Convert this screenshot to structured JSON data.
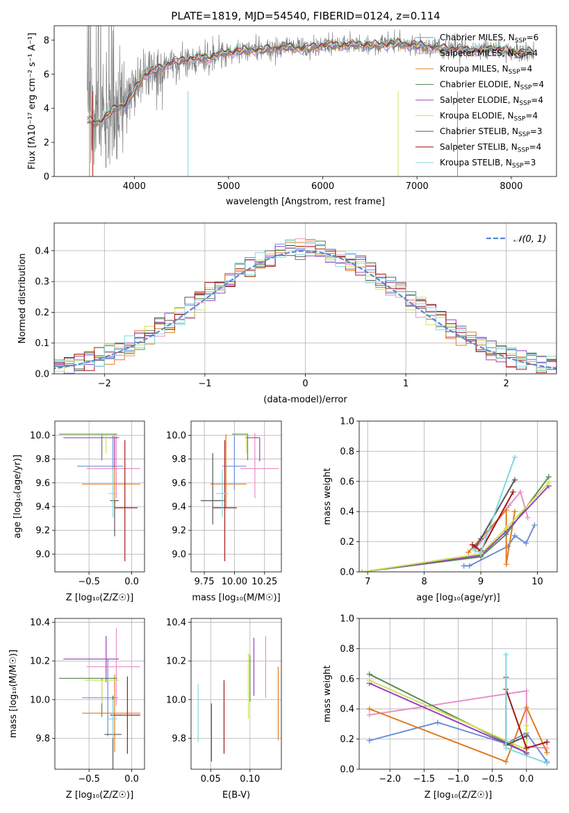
{
  "colors": {
    "Chabrier MILES": "#6a8fd8",
    "Salpeter MILES": "#e990c7",
    "Kroupa MILES": "#e07b20",
    "Chabrier ELODIE": "#5a8a5a",
    "Salpeter ELODIE": "#9b3fbf",
    "Kroupa ELODIE": "#cfe05a",
    "Chabrier STELIB": "#555555",
    "Salpeter STELIB": "#a01818",
    "Kroupa STELIB": "#7fd8e0"
  },
  "chart_data": [
    {
      "id": "spectrum",
      "type": "line",
      "title": "PLATE=1819, MJD=54540, FIBERID=0124, z=0.114",
      "xlabel": "wavelength [Angstrom, rest frame]",
      "ylabel": "Flux [fλ10⁻¹⁷ erg cm⁻² s⁻¹ A⁻¹]",
      "xlim": [
        3150,
        8480
      ],
      "ylim": [
        0,
        8.85
      ],
      "xticks": [
        "4000",
        "5000",
        "6000",
        "7000",
        "8000"
      ],
      "yticks": [
        "0",
        "2",
        "4",
        "6",
        "8"
      ],
      "grid": false,
      "legend_position": "upper-right",
      "legend": [
        {
          "label": "Chabrier MILES, N",
          "sub": "SSP",
          "suffix": "=6",
          "series": "Chabrier MILES"
        },
        {
          "label": "Salpeter MILES, N",
          "sub": "SSP",
          "suffix": "=4",
          "series": "Salpeter MILES"
        },
        {
          "label": "Kroupa MILES, N",
          "sub": "SSP",
          "suffix": "=4",
          "series": "Kroupa MILES"
        },
        {
          "label": "Chabrier ELODIE, N",
          "sub": "SSP",
          "suffix": "=4",
          "series": "Chabrier ELODIE"
        },
        {
          "label": "Salpeter ELODIE, N",
          "sub": "SSP",
          "suffix": "=4",
          "series": "Salpeter ELODIE"
        },
        {
          "label": "Kroupa ELODIE, N",
          "sub": "SSP",
          "suffix": "=4",
          "series": "Kroupa ELODIE"
        },
        {
          "label": "Chabrier STELIB, N",
          "sub": "SSP",
          "suffix": "=3",
          "series": "Chabrier STELIB"
        },
        {
          "label": "Salpeter STELIB, N",
          "sub": "SSP",
          "suffix": "=4",
          "series": "Salpeter STELIB"
        },
        {
          "label": "Kroupa STELIB, N",
          "sub": "SSP",
          "suffix": "=3",
          "series": "Kroupa STELIB"
        }
      ],
      "continuum": {
        "x": [
          3500,
          3600,
          3700,
          3800,
          3900,
          4000,
          4100,
          4200,
          4300,
          4400,
          4500,
          4600,
          4800,
          5000,
          5200,
          5400,
          5600,
          5800,
          6000,
          6200,
          6400,
          6600,
          6800,
          7000,
          7200,
          7400,
          7600,
          7800,
          8000,
          8240
        ],
        "y": [
          3.3,
          3.1,
          3.5,
          4.0,
          4.2,
          5.0,
          5.9,
          6.2,
          6.4,
          6.7,
          6.8,
          6.9,
          7.0,
          7.3,
          7.4,
          7.45,
          7.6,
          7.5,
          7.7,
          7.7,
          7.75,
          7.7,
          7.8,
          7.7,
          7.55,
          7.5,
          7.35,
          7.5,
          7.3,
          7.3
        ]
      },
      "data_color": "#808080",
      "noise_note_wavelengths": []
    },
    {
      "id": "residuals",
      "type": "histogram",
      "xlabel": "(data-model)/error",
      "ylabel": "Normed distribution",
      "xlim": [
        -2.5,
        2.5
      ],
      "ylim": [
        0,
        0.49
      ],
      "xticks": [
        "−2",
        "−1",
        "0",
        "1",
        "2"
      ],
      "yticks": [
        "0.0",
        "0.1",
        "0.2",
        "0.3",
        "0.4"
      ],
      "grid": true,
      "legend_position": "upper-right",
      "gaussian_label": "𝒩(0, 1)",
      "gaussian_color": "#5b86d6",
      "bin_width": 0.1
    },
    {
      "id": "age-vs-Z",
      "type": "errorbar",
      "xlabel": "Z [log₁₀(Z/Z☉)]",
      "ylabel": "age  [log₁₀(age/yr)]",
      "xlim": [
        -0.9,
        0.15
      ],
      "ylim": [
        8.85,
        10.12
      ],
      "xticks": [
        "−0.5",
        "0.0"
      ],
      "xtick_values": [
        -0.5,
        0
      ],
      "yticks": [
        "9.0",
        "9.2",
        "9.4",
        "9.6",
        "9.8",
        "10.0"
      ],
      "ytick_values": [
        9.0,
        9.2,
        9.4,
        9.6,
        9.8,
        10.0
      ],
      "grid": true,
      "points": [
        {
          "series": "Chabrier MILES",
          "x": -0.22,
          "xerr": [
            0.42,
            0.12
          ],
          "y": 9.74,
          "yerr": [
            0.2,
            0.26
          ]
        },
        {
          "series": "Salpeter MILES",
          "x": -0.18,
          "xerr": [
            0.35,
            0.28
          ],
          "y": 9.72,
          "yerr": [
            0.25,
            0.28
          ]
        },
        {
          "series": "Kroupa MILES",
          "x": -0.2,
          "xerr": [
            0.38,
            0.3
          ],
          "y": 9.59,
          "yerr": [
            0.2,
            0.42
          ]
        },
        {
          "series": "Chabrier ELODIE",
          "x": -0.35,
          "xerr": [
            0.5,
            0.18
          ],
          "y": 10.01,
          "yerr": [
            0.22,
            0.0
          ]
        },
        {
          "series": "Salpeter ELODIE",
          "x": -0.2,
          "xerr": [
            0.6,
            0.05
          ],
          "y": 9.98,
          "yerr": [
            0.25,
            0.0
          ]
        },
        {
          "series": "Kroupa ELODIE",
          "x": -0.3,
          "xerr": [
            0.5,
            0.15
          ],
          "y": 10.0,
          "yerr": [
            0.15,
            0.0
          ]
        },
        {
          "series": "Chabrier STELIB",
          "x": -0.2,
          "xerr": [
            0.05,
            0.05
          ],
          "y": 9.45,
          "yerr": [
            0.3,
            0.0
          ]
        },
        {
          "series": "Salpeter STELIB",
          "x": -0.08,
          "xerr": [
            0.12,
            0.15
          ],
          "y": 9.39,
          "yerr": [
            0.45,
            0.57
          ]
        },
        {
          "series": "Kroupa STELIB",
          "x": -0.22,
          "xerr": [
            0.05,
            0.05
          ],
          "y": 9.51,
          "yerr": [
            0.2,
            0.2
          ]
        }
      ]
    },
    {
      "id": "age-vs-mass",
      "type": "errorbar",
      "xlabel": "mass [log₁₀(M/M☉)]",
      "xlim": [
        9.64,
        10.39
      ],
      "ylim": [
        8.85,
        10.12
      ],
      "xticks": [
        "9.75",
        "10.00",
        "10.25"
      ],
      "xtick_values": [
        9.75,
        10.0,
        10.25
      ],
      "yticks": [
        "9.0",
        "9.2",
        "9.4",
        "9.6",
        "9.8",
        "10.0"
      ],
      "ytick_values": [
        9.0,
        9.2,
        9.4,
        9.6,
        9.8,
        10.0
      ],
      "grid": true,
      "points": [
        {
          "series": "Chabrier MILES",
          "x": 10.0,
          "xerr": [
            0.1,
            0.1
          ],
          "y": 9.74,
          "yerr": [
            0.2,
            0.26
          ]
        },
        {
          "series": "Salpeter MILES",
          "x": 10.17,
          "xerr": [
            0.12,
            0.2
          ],
          "y": 9.72,
          "yerr": [
            0.25,
            0.3
          ]
        },
        {
          "series": "Kroupa MILES",
          "x": 9.93,
          "xerr": [
            0.13,
            0.17
          ],
          "y": 9.59,
          "yerr": [
            0.2,
            0.42
          ]
        },
        {
          "series": "Chabrier ELODIE",
          "x": 10.11,
          "xerr": [
            0.13,
            0.0
          ],
          "y": 10.01,
          "yerr": [
            0.22,
            0.0
          ]
        },
        {
          "series": "Salpeter ELODIE",
          "x": 10.21,
          "xerr": [
            0.12,
            0.0
          ],
          "y": 9.98,
          "yerr": [
            0.2,
            0.0
          ]
        },
        {
          "series": "Kroupa ELODIE",
          "x": 10.1,
          "xerr": [
            0.1,
            0.0
          ],
          "y": 10.0,
          "yerr": [
            0.15,
            0.0
          ]
        },
        {
          "series": "Chabrier STELIB",
          "x": 9.82,
          "xerr": [
            0.1,
            0.1
          ],
          "y": 9.45,
          "yerr": [
            0.2,
            0.4
          ]
        },
        {
          "series": "Salpeter STELIB",
          "x": 9.92,
          "xerr": [
            0.1,
            0.1
          ],
          "y": 9.39,
          "yerr": [
            0.45,
            0.57
          ]
        },
        {
          "series": "Kroupa STELIB",
          "x": 9.9,
          "xerr": [
            0.05,
            0.05
          ],
          "y": 9.51,
          "yerr": [
            0.2,
            0.2
          ]
        }
      ]
    },
    {
      "id": "massweight-vs-age",
      "type": "line",
      "xlabel": "age  [log₁₀(age/yr)]",
      "ylabel": "mass weight",
      "xlim": [
        6.85,
        10.35
      ],
      "ylim": [
        0,
        1.0
      ],
      "xticks": [
        "7",
        "8",
        "9",
        "10"
      ],
      "xtick_values": [
        7,
        8,
        9,
        10
      ],
      "yticks": [
        "0.0",
        "0.2",
        "0.4",
        "0.6",
        "0.8",
        "1.0"
      ],
      "ytick_values": [
        0,
        0.2,
        0.4,
        0.6,
        0.8,
        1.0
      ],
      "grid": true,
      "series": [
        {
          "name": "Chabrier MILES",
          "x": [
            8.7,
            8.8,
            9.48,
            9.6,
            9.8,
            9.95
          ],
          "y": [
            0.04,
            0.04,
            0.17,
            0.24,
            0.19,
            0.31
          ]
        },
        {
          "name": "Salpeter MILES",
          "x": [
            8.9,
            9.5,
            9.7,
            9.83
          ],
          "y": [
            0.15,
            0.44,
            0.53,
            0.36
          ]
        },
        {
          "name": "Kroupa MILES",
          "x": [
            8.78,
            9.45,
            9.45,
            9.6
          ],
          "y": [
            0.13,
            0.41,
            0.05,
            0.4
          ]
        },
        {
          "name": "Chabrier ELODIE",
          "x": [
            6.9,
            9.0,
            9.45,
            10.2
          ],
          "y": [
            0.0,
            0.1,
            0.25,
            0.63
          ]
        },
        {
          "name": "Salpeter ELODIE",
          "x": [
            6.9,
            9.0,
            9.45,
            10.2
          ],
          "y": [
            0.0,
            0.11,
            0.27,
            0.57
          ]
        },
        {
          "name": "Kroupa ELODIE",
          "x": [
            6.9,
            9.0,
            9.45,
            10.2
          ],
          "y": [
            0.0,
            0.12,
            0.29,
            0.59
          ]
        },
        {
          "name": "Chabrier STELIB",
          "x": [
            8.9,
            9.0,
            9.6
          ],
          "y": [
            0.16,
            0.22,
            0.61
          ]
        },
        {
          "name": "Salpeter STELIB",
          "x": [
            8.85,
            9.0,
            9.57
          ],
          "y": [
            0.18,
            0.14,
            0.53
          ]
        },
        {
          "name": "Kroupa STELIB",
          "x": [
            8.9,
            9.0,
            9.6
          ],
          "y": [
            0.14,
            0.13,
            0.76
          ]
        }
      ]
    },
    {
      "id": "mass-vs-Z",
      "type": "errorbar",
      "xlabel": "Z [log₁₀(Z/Z☉)]",
      "ylabel": "mass [log₁₀(M/M☉)]",
      "xlim": [
        -0.9,
        0.15
      ],
      "ylim": [
        9.64,
        10.42
      ],
      "xticks": [
        "−0.5",
        "0.0"
      ],
      "xtick_values": [
        -0.5,
        0
      ],
      "yticks": [
        "9.8",
        "10.0",
        "10.2",
        "10.4"
      ],
      "ytick_values": [
        9.8,
        10.0,
        10.2,
        10.4
      ],
      "grid": true,
      "points": [
        {
          "series": "Chabrier MILES",
          "x": -0.28,
          "xerr": [
            0.3,
            0.12
          ],
          "y": 10.01,
          "yerr": [
            0.2,
            0.2
          ]
        },
        {
          "series": "Salpeter MILES",
          "x": -0.18,
          "xerr": [
            0.35,
            0.28
          ],
          "y": 10.17,
          "yerr": [
            0.2,
            0.2
          ]
        },
        {
          "series": "Kroupa MILES",
          "x": -0.2,
          "xerr": [
            0.38,
            0.3
          ],
          "y": 9.93,
          "yerr": [
            0.2,
            0.2
          ]
        },
        {
          "series": "Chabrier ELODIE",
          "x": -0.35,
          "xerr": [
            0.5,
            0.18
          ],
          "y": 10.11,
          "yerr": [
            0.2,
            0.0
          ]
        },
        {
          "series": "Salpeter ELODIE",
          "x": -0.3,
          "xerr": [
            0.5,
            0.15
          ],
          "y": 10.21,
          "yerr": [
            0.12,
            0.12
          ]
        },
        {
          "series": "Kroupa ELODIE",
          "x": -0.35,
          "xerr": [
            0.2,
            0.2
          ],
          "y": 10.1,
          "yerr": [
            0.12,
            0.0
          ]
        },
        {
          "series": "Chabrier STELIB",
          "x": -0.22,
          "xerr": [
            0.1,
            0.1
          ],
          "y": 9.82,
          "yerr": [
            0.2,
            0.2
          ]
        },
        {
          "series": "Salpeter STELIB",
          "x": -0.05,
          "xerr": [
            0.2,
            0.15
          ],
          "y": 9.92,
          "yerr": [
            0.2,
            0.2
          ]
        },
        {
          "series": "Kroupa STELIB",
          "x": -0.22,
          "xerr": [
            0.05,
            0.05
          ],
          "y": 9.9,
          "yerr": [
            0.1,
            0.1
          ]
        }
      ]
    },
    {
      "id": "mass-vs-EBV",
      "type": "errorbar",
      "xlabel": "E(B-V)",
      "xlim": [
        0.025,
        0.14
      ],
      "ylim": [
        9.64,
        10.42
      ],
      "xticks": [
        "0.05",
        "0.10"
      ],
      "xtick_values": [
        0.05,
        0.1
      ],
      "yticks": [
        "9.8",
        "10.0",
        "10.2",
        "10.4"
      ],
      "ytick_values": [
        9.8,
        10.0,
        10.2,
        10.4
      ],
      "grid": true,
      "points": [
        {
          "series": "Kroupa STELIB",
          "x": 0.034,
          "y": 9.93,
          "yerr": [
            0.15,
            0.15
          ]
        },
        {
          "series": "Chabrier STELIB",
          "x": 0.051,
          "y": 9.83,
          "yerr": [
            0.15,
            0.15
          ]
        },
        {
          "series": "Salpeter STELIB",
          "x": 0.067,
          "y": 9.91,
          "yerr": [
            0.19,
            0.19
          ]
        },
        {
          "series": "Kroupa ELODIE",
          "x": 0.098,
          "y": 10.07,
          "yerr": [
            0.17,
            0.17
          ]
        },
        {
          "series": "Chabrier ELODIE",
          "x": 0.1,
          "y": 10.11,
          "yerr": [
            0.12,
            0.12
          ]
        },
        {
          "series": "Salpeter ELODIE",
          "x": 0.105,
          "y": 10.17,
          "yerr": [
            0.15,
            0.15
          ]
        },
        {
          "series": "Salpeter MILES",
          "x": 0.12,
          "y": 10.17,
          "yerr": [
            0.16,
            0.16
          ]
        },
        {
          "series": "Kroupa MILES",
          "x": 0.136,
          "y": 9.98,
          "yerr": [
            0.19,
            0.19
          ]
        }
      ]
    },
    {
      "id": "massweight-vs-Z",
      "type": "line",
      "xlabel": "Z [log₁₀(Z/Z☉)]",
      "ylabel": "mass weight",
      "xlim": [
        -2.45,
        0.45
      ],
      "ylim": [
        0,
        1.0
      ],
      "xticks": [
        "−2.0",
        "−1.5",
        "−1.0",
        "−0.5",
        "0.0"
      ],
      "xtick_values": [
        -2.0,
        -1.5,
        -1.0,
        -0.5,
        0.0
      ],
      "yticks": [
        "0.0",
        "0.2",
        "0.4",
        "0.6",
        "0.8",
        "1.0"
      ],
      "ytick_values": [
        0,
        0.2,
        0.4,
        0.6,
        0.8,
        1.0
      ],
      "grid": true,
      "series": [
        {
          "name": "Chabrier MILES",
          "x": [
            -2.3,
            -1.3,
            -0.3,
            0.0,
            0.3,
            0.3
          ],
          "y": [
            0.19,
            0.31,
            0.17,
            0.24,
            0.05,
            0.04
          ]
        },
        {
          "name": "Salpeter MILES",
          "x": [
            -2.3,
            0.0,
            0.0,
            0.3
          ],
          "y": [
            0.36,
            0.52,
            0.15,
            0.14
          ]
        },
        {
          "name": "Kroupa MILES",
          "x": [
            -2.3,
            -0.3,
            0.0,
            0.3
          ],
          "y": [
            0.4,
            0.05,
            0.41,
            0.11
          ]
        },
        {
          "name": "Chabrier ELODIE",
          "x": [
            -2.3,
            0.0,
            0.0
          ],
          "y": [
            0.63,
            0.11,
            0.1
          ]
        },
        {
          "name": "Salpeter ELODIE",
          "x": [
            -2.3,
            0.0,
            0.0
          ],
          "y": [
            0.57,
            0.11,
            0.13
          ]
        },
        {
          "name": "Kroupa ELODIE",
          "x": [
            -2.3,
            0.0,
            0.0
          ],
          "y": [
            0.59,
            0.13,
            0.29
          ]
        },
        {
          "name": "Chabrier STELIB",
          "x": [
            -0.3,
            -0.3,
            0.0
          ],
          "y": [
            0.61,
            0.16,
            0.22
          ]
        },
        {
          "name": "Salpeter STELIB",
          "x": [
            -0.3,
            0.0,
            0.3
          ],
          "y": [
            0.53,
            0.14,
            0.18
          ]
        },
        {
          "name": "Kroupa STELIB",
          "x": [
            -0.3,
            -0.3,
            0.3
          ],
          "y": [
            0.76,
            0.14,
            0.04
          ]
        }
      ]
    }
  ]
}
